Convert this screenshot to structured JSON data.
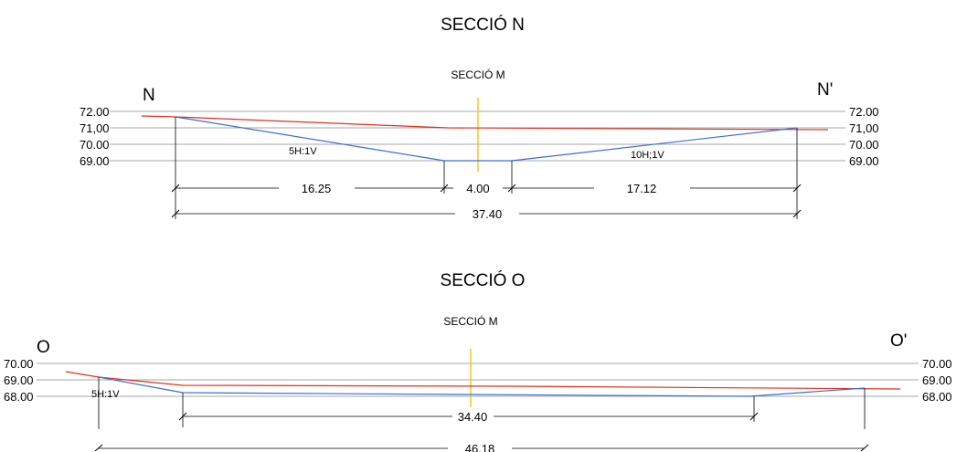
{
  "sections": [
    {
      "title": "SECCIÓ N",
      "axis_label": "SECCIÓ M",
      "left_mark": "N",
      "right_mark": "N'",
      "elevations": [
        "72.00",
        "71,00",
        "70.00",
        "69.00"
      ],
      "slopes": [
        "5H:1V",
        "10H;1V"
      ],
      "dims": [
        "16.25",
        "4.00",
        "17.12",
        "37.40"
      ]
    },
    {
      "title": "SECCIÓ O",
      "axis_label": "SECCIÓ M",
      "left_mark": "O",
      "right_mark": "O'",
      "elevations": [
        "70.00",
        "69.00",
        "68.00"
      ],
      "slopes": [
        "5H:1V"
      ],
      "dims": [
        "34.40",
        "46.18"
      ]
    }
  ],
  "colors": {
    "terrain": "#e0301e",
    "channel": "#3a6fd8",
    "axis": "#f2c21a",
    "grid": "#8a8a8a"
  }
}
